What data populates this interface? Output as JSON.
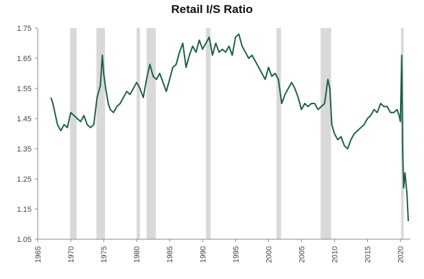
{
  "chart_data": {
    "type": "line",
    "title": "Retail I/S Ratio",
    "xlabel": "",
    "ylabel": "",
    "xlim": [
      1965,
      2021.5
    ],
    "ylim": [
      1.05,
      1.75
    ],
    "x_ticks": [
      "1965",
      "1970",
      "1975",
      "1980",
      "1985",
      "1990",
      "1995",
      "2000",
      "2005",
      "2010",
      "2015",
      "2020"
    ],
    "y_ticks": [
      "1.75",
      "1.65",
      "1.55",
      "1.45",
      "1.35",
      "1.25",
      "1.15",
      "1.05"
    ],
    "grid": false,
    "recession_shading": [
      [
        1969.9,
        1970.9
      ],
      [
        1973.9,
        1975.2
      ],
      [
        1980.0,
        1980.5
      ],
      [
        1981.5,
        1982.9
      ],
      [
        1990.5,
        1991.2
      ],
      [
        2001.2,
        2001.9
      ],
      [
        2007.9,
        2009.5
      ],
      [
        2020.1,
        2020.5
      ]
    ],
    "series": [
      {
        "color": "#1d5e47",
        "x": [
          1967.0,
          1967.3,
          1967.7,
          1968.0,
          1968.5,
          1969.0,
          1969.5,
          1970.0,
          1970.5,
          1971.0,
          1971.5,
          1972.0,
          1972.5,
          1973.0,
          1973.5,
          1974.0,
          1974.5,
          1974.8,
          1975.0,
          1975.3,
          1975.7,
          1976.0,
          1976.5,
          1977.0,
          1977.5,
          1978.0,
          1978.5,
          1979.0,
          1979.5,
          1980.0,
          1980.5,
          1981.0,
          1981.5,
          1982.0,
          1982.5,
          1983.0,
          1983.5,
          1984.0,
          1984.5,
          1985.0,
          1985.5,
          1986.0,
          1986.5,
          1987.0,
          1987.5,
          1988.0,
          1988.5,
          1989.0,
          1989.5,
          1990.0,
          1990.5,
          1991.0,
          1991.5,
          1992.0,
          1992.5,
          1993.0,
          1993.5,
          1994.0,
          1994.5,
          1995.0,
          1995.5,
          1996.0,
          1996.5,
          1997.0,
          1997.5,
          1998.0,
          1998.5,
          1999.0,
          1999.5,
          2000.0,
          2000.5,
          2001.0,
          2001.5,
          2002.0,
          2002.5,
          2003.0,
          2003.5,
          2004.0,
          2004.5,
          2005.0,
          2005.5,
          2006.0,
          2006.5,
          2007.0,
          2007.5,
          2008.0,
          2008.5,
          2009.0,
          2009.3,
          2009.6,
          2010.0,
          2010.5,
          2011.0,
          2011.5,
          2012.0,
          2012.5,
          2013.0,
          2013.5,
          2014.0,
          2014.5,
          2015.0,
          2015.5,
          2016.0,
          2016.5,
          2017.0,
          2017.5,
          2018.0,
          2018.5,
          2019.0,
          2019.5,
          2019.8,
          2020.0,
          2020.2,
          2020.35,
          2020.5,
          2020.7,
          2021.0,
          2021.2
        ],
        "y": [
          1.52,
          1.5,
          1.46,
          1.43,
          1.41,
          1.43,
          1.42,
          1.47,
          1.46,
          1.45,
          1.44,
          1.46,
          1.43,
          1.42,
          1.43,
          1.52,
          1.56,
          1.66,
          1.6,
          1.55,
          1.5,
          1.48,
          1.47,
          1.49,
          1.5,
          1.52,
          1.54,
          1.53,
          1.55,
          1.57,
          1.55,
          1.52,
          1.58,
          1.63,
          1.59,
          1.58,
          1.6,
          1.57,
          1.54,
          1.58,
          1.62,
          1.63,
          1.67,
          1.7,
          1.62,
          1.66,
          1.69,
          1.67,
          1.71,
          1.68,
          1.7,
          1.72,
          1.66,
          1.7,
          1.67,
          1.68,
          1.67,
          1.69,
          1.66,
          1.72,
          1.73,
          1.69,
          1.67,
          1.65,
          1.66,
          1.64,
          1.62,
          1.6,
          1.58,
          1.62,
          1.59,
          1.6,
          1.58,
          1.5,
          1.53,
          1.55,
          1.57,
          1.55,
          1.52,
          1.48,
          1.5,
          1.49,
          1.5,
          1.5,
          1.48,
          1.49,
          1.5,
          1.58,
          1.55,
          1.43,
          1.4,
          1.38,
          1.39,
          1.36,
          1.35,
          1.38,
          1.4,
          1.41,
          1.42,
          1.43,
          1.45,
          1.46,
          1.48,
          1.47,
          1.5,
          1.49,
          1.49,
          1.47,
          1.47,
          1.48,
          1.46,
          1.44,
          1.66,
          1.35,
          1.22,
          1.27,
          1.2,
          1.11
        ]
      }
    ]
  }
}
